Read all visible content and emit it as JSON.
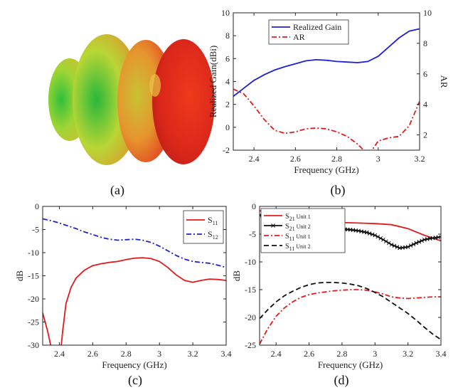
{
  "panels": {
    "a": {
      "caption": "(a)"
    },
    "b": {
      "caption": "(b)"
    },
    "c": {
      "caption": "(c)"
    },
    "d": {
      "caption": "(d)"
    }
  },
  "colors": {
    "blue": "#1f1fd6",
    "red": "#e21a1a",
    "black": "#111111",
    "gain_axis": "#2a8bd0",
    "ar_axis": "#e8663a"
  },
  "chart_data": [
    {
      "id": "b",
      "type": "line",
      "xlabel": "Frequency (GHz)",
      "ylabel": "Realized Gain(dBi)",
      "y2label": "AR",
      "xlim": [
        2.3,
        3.2
      ],
      "ylim": [
        -2,
        10
      ],
      "y2lim": [
        1,
        10
      ],
      "xticks": [
        2.4,
        2.6,
        2.8,
        3,
        3.2
      ],
      "xtick_labels": [
        "2.4",
        "2.6",
        "2.8",
        "3",
        "3.2"
      ],
      "yticks": [
        -2,
        0,
        2,
        4,
        6,
        8,
        10
      ],
      "ytick_labels": [
        "-2",
        "0",
        "2",
        "4",
        "6",
        "8",
        "10"
      ],
      "y2ticks": [
        2,
        4,
        6,
        8,
        10
      ],
      "y2tick_labels": [
        "2",
        "4",
        "6",
        "8",
        "10"
      ],
      "legend_position": "top-left",
      "grid": false,
      "series": [
        {
          "name": "Realized Gain",
          "axis": "left",
          "color": "#1f1fd6",
          "dash": "solid",
          "x": [
            2.3,
            2.35,
            2.4,
            2.45,
            2.5,
            2.55,
            2.6,
            2.65,
            2.7,
            2.75,
            2.8,
            2.85,
            2.9,
            2.95,
            3.0,
            3.05,
            3.1,
            3.15,
            3.2
          ],
          "y": [
            2.7,
            3.4,
            4.1,
            4.6,
            5.0,
            5.3,
            5.55,
            5.8,
            5.9,
            5.85,
            5.75,
            5.7,
            5.65,
            5.75,
            6.2,
            7.0,
            7.8,
            8.4,
            8.6
          ]
        },
        {
          "name": "AR",
          "axis": "right",
          "color": "#e21a1a",
          "dash": "dashdot",
          "x": [
            2.3,
            2.35,
            2.4,
            2.45,
            2.5,
            2.55,
            2.6,
            2.65,
            2.7,
            2.75,
            2.8,
            2.85,
            2.9,
            2.93,
            2.95,
            2.97,
            3.0,
            3.05,
            3.1,
            3.15,
            3.2
          ],
          "y": [
            5.0,
            4.7,
            3.9,
            3.0,
            2.3,
            2.1,
            2.2,
            2.4,
            2.45,
            2.4,
            2.2,
            1.9,
            1.4,
            1.0,
            0.85,
            1.0,
            1.6,
            1.8,
            1.9,
            2.6,
            4.2
          ]
        }
      ]
    },
    {
      "id": "c",
      "type": "line",
      "xlabel": "Frequency (GHz)",
      "ylabel": "dB",
      "xlim": [
        2.3,
        3.4
      ],
      "ylim": [
        -30,
        0
      ],
      "xticks": [
        2.4,
        2.6,
        2.8,
        3,
        3.2,
        3.4
      ],
      "xtick_labels": [
        "2.4",
        "2.6",
        "2.8",
        "3",
        "3.2",
        "3.4"
      ],
      "yticks": [
        -30,
        -25,
        -20,
        -15,
        -10,
        -5,
        0
      ],
      "ytick_labels": [
        "-30",
        "-25",
        "-20",
        "-15",
        "-10",
        "-5",
        "0"
      ],
      "legend_position": "top-right",
      "grid": false,
      "series": [
        {
          "name": "S",
          "sub": "11",
          "color": "#e21a1a",
          "dash": "solid",
          "x": [
            2.3,
            2.33,
            2.36,
            2.38,
            2.4,
            2.42,
            2.44,
            2.47,
            2.5,
            2.55,
            2.6,
            2.65,
            2.7,
            2.75,
            2.8,
            2.85,
            2.9,
            2.95,
            3.0,
            3.05,
            3.1,
            3.15,
            3.2,
            3.25,
            3.3,
            3.35,
            3.4
          ],
          "y": [
            -23,
            -27,
            -32,
            -35,
            -34,
            -27,
            -21,
            -17.5,
            -15.5,
            -13.8,
            -12.8,
            -12.4,
            -12.1,
            -11.9,
            -11.5,
            -11.2,
            -11.1,
            -11.3,
            -11.9,
            -13.2,
            -14.8,
            -16.0,
            -16.4,
            -16.0,
            -15.7,
            -15.8,
            -16.0
          ]
        },
        {
          "name": "S",
          "sub": "12",
          "color": "#1f1fd6",
          "dash": "dashdot",
          "x": [
            2.3,
            2.35,
            2.4,
            2.45,
            2.5,
            2.55,
            2.6,
            2.65,
            2.7,
            2.75,
            2.8,
            2.85,
            2.9,
            2.95,
            3.0,
            3.05,
            3.1,
            3.15,
            3.2,
            3.25,
            3.3,
            3.35,
            3.4
          ],
          "y": [
            -2.7,
            -3.1,
            -3.6,
            -4.2,
            -4.8,
            -5.5,
            -6.1,
            -6.7,
            -7.1,
            -7.3,
            -7.2,
            -7.1,
            -7.3,
            -7.8,
            -8.6,
            -9.6,
            -10.6,
            -11.4,
            -11.9,
            -12.1,
            -12.3,
            -12.7,
            -13.2
          ]
        }
      ]
    },
    {
      "id": "d",
      "type": "line",
      "xlabel": "Frequency (GHz)",
      "ylabel": "dB",
      "xlim": [
        2.3,
        3.4
      ],
      "ylim": [
        -25,
        0
      ],
      "xticks": [
        2.4,
        2.6,
        2.8,
        3,
        3.2,
        3.4
      ],
      "xtick_labels": [
        "2.4",
        "2.6",
        "2.8",
        "3",
        "3.2",
        "3.4"
      ],
      "yticks": [
        -25,
        -20,
        -15,
        -10,
        -5,
        0
      ],
      "ytick_labels": [
        "-25",
        "-20",
        "-15",
        "-10",
        "-5",
        "0"
      ],
      "legend_position": "top-left",
      "grid": false,
      "series": [
        {
          "name": "S",
          "sub": "21",
          "suffix": " Unit 1",
          "color": "#e21a1a",
          "dash": "solid",
          "x": [
            2.3,
            2.4,
            2.5,
            2.6,
            2.7,
            2.8,
            2.9,
            3.0,
            3.1,
            3.2,
            3.3,
            3.4
          ],
          "y": [
            -0.8,
            -1.2,
            -1.7,
            -2.2,
            -2.6,
            -2.9,
            -3.0,
            -3.1,
            -3.3,
            -4.0,
            -5.2,
            -6.2
          ]
        },
        {
          "name": "S",
          "sub": "21",
          "suffix": " Unit 2",
          "color": "#111111",
          "dash": "solid",
          "marker": "x",
          "x": [
            2.3,
            2.35,
            2.4,
            2.45,
            2.5,
            2.55,
            2.6,
            2.65,
            2.7,
            2.75,
            2.8,
            2.85,
            2.9,
            2.95,
            3.0,
            3.05,
            3.1,
            3.15,
            3.2,
            3.25,
            3.3,
            3.35,
            3.4
          ],
          "y": [
            -1.6,
            -2.0,
            -2.5,
            -3.0,
            -3.4,
            -3.7,
            -3.9,
            -4.0,
            -4.0,
            -4.0,
            -4.1,
            -4.2,
            -4.4,
            -4.7,
            -5.2,
            -6.0,
            -6.9,
            -7.5,
            -7.3,
            -6.6,
            -6.0,
            -5.7,
            -5.5
          ]
        },
        {
          "name": "S",
          "sub": "11",
          "suffix": " Unit 1",
          "color": "#e21a1a",
          "dash": "dashdot",
          "x": [
            2.3,
            2.35,
            2.4,
            2.45,
            2.5,
            2.55,
            2.6,
            2.65,
            2.7,
            2.75,
            2.8,
            2.85,
            2.9,
            2.95,
            3.0,
            3.05,
            3.1,
            3.15,
            3.2,
            3.25,
            3.3,
            3.35,
            3.4
          ],
          "y": [
            -24.8,
            -22.0,
            -19.8,
            -18.3,
            -17.2,
            -16.4,
            -15.9,
            -15.6,
            -15.4,
            -15.2,
            -15.1,
            -15.0,
            -15.0,
            -15.1,
            -15.4,
            -15.8,
            -16.3,
            -16.5,
            -16.6,
            -16.5,
            -16.4,
            -16.3,
            -16.3
          ]
        },
        {
          "name": "S",
          "sub": "11",
          "suffix": " Unit 2",
          "color": "#111111",
          "dash": "dashed",
          "x": [
            2.3,
            2.35,
            2.4,
            2.45,
            2.5,
            2.55,
            2.6,
            2.65,
            2.7,
            2.75,
            2.8,
            2.85,
            2.9,
            2.95,
            3.0,
            3.05,
            3.1,
            3.15,
            3.2,
            3.25,
            3.3,
            3.35,
            3.4
          ],
          "y": [
            -20.2,
            -18.6,
            -17.2,
            -16.1,
            -15.3,
            -14.6,
            -14.1,
            -13.8,
            -13.7,
            -13.7,
            -13.8,
            -14.0,
            -14.3,
            -14.8,
            -15.5,
            -16.3,
            -17.3,
            -18.3,
            -19.3,
            -20.5,
            -21.8,
            -23.0,
            -24.0
          ]
        }
      ]
    }
  ]
}
